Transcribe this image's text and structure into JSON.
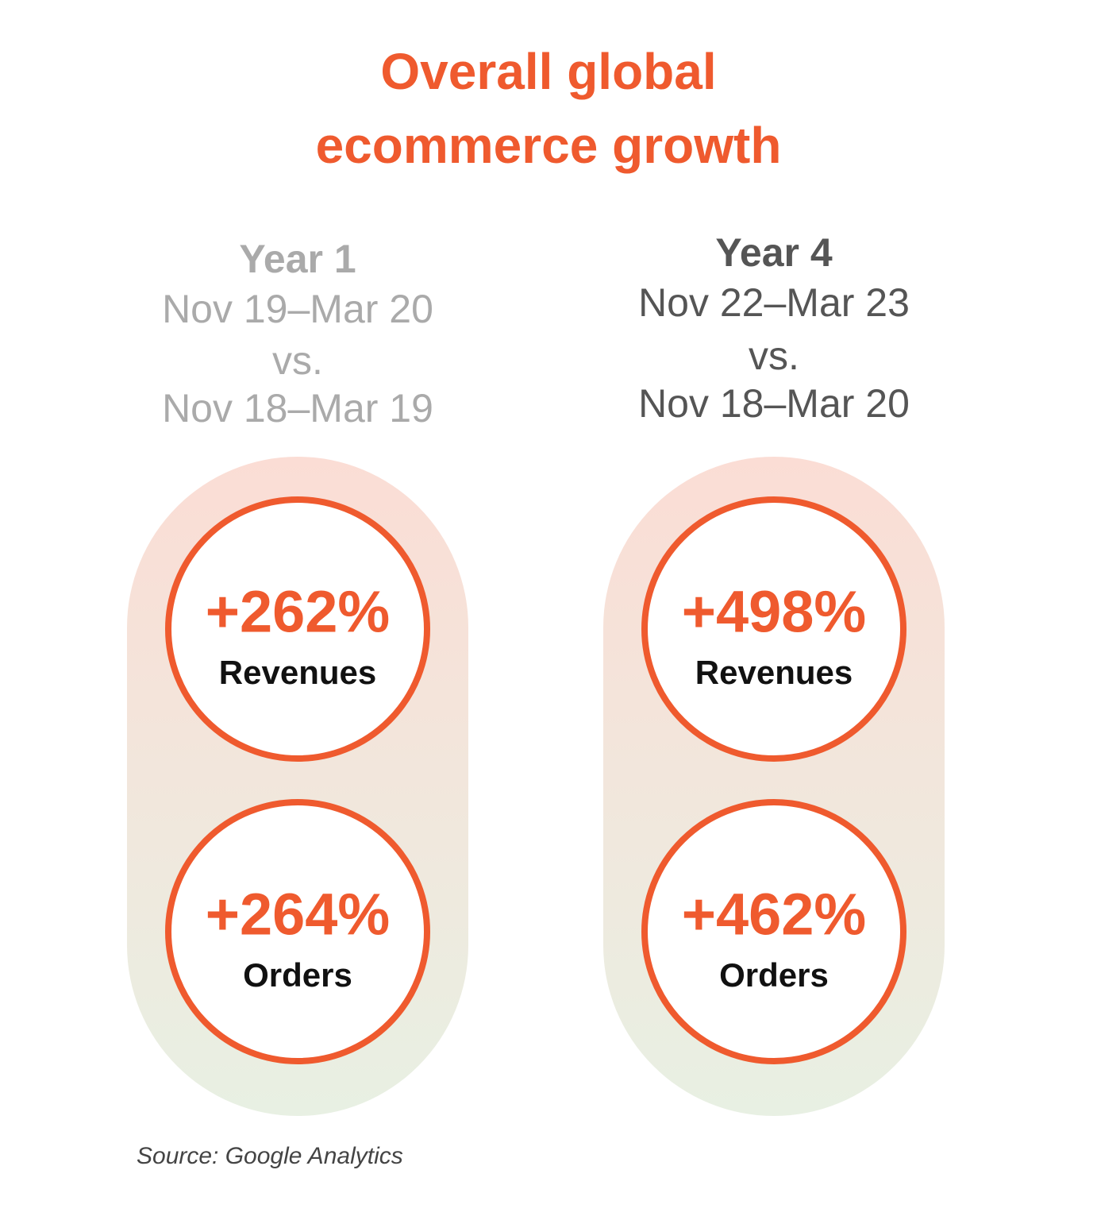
{
  "title": [
    "Overall global",
    "ecommerce growth"
  ],
  "columns": [
    {
      "heading": "Year 1",
      "period": [
        "Nov 19–Mar 20",
        "vs.",
        "Nov 18–Mar 19"
      ],
      "stats": [
        {
          "value": "+262%",
          "label": "Revenues"
        },
        {
          "value": "+264%",
          "label": "Orders"
        }
      ]
    },
    {
      "heading": "Year 4",
      "period": [
        "Nov 22–Mar 23",
        "vs.",
        "Nov 18–Mar 20"
      ],
      "stats": [
        {
          "value": "+498%",
          "label": "Revenues"
        },
        {
          "value": "+462%",
          "label": "Orders"
        }
      ]
    }
  ],
  "source": "Source: Google Analytics"
}
